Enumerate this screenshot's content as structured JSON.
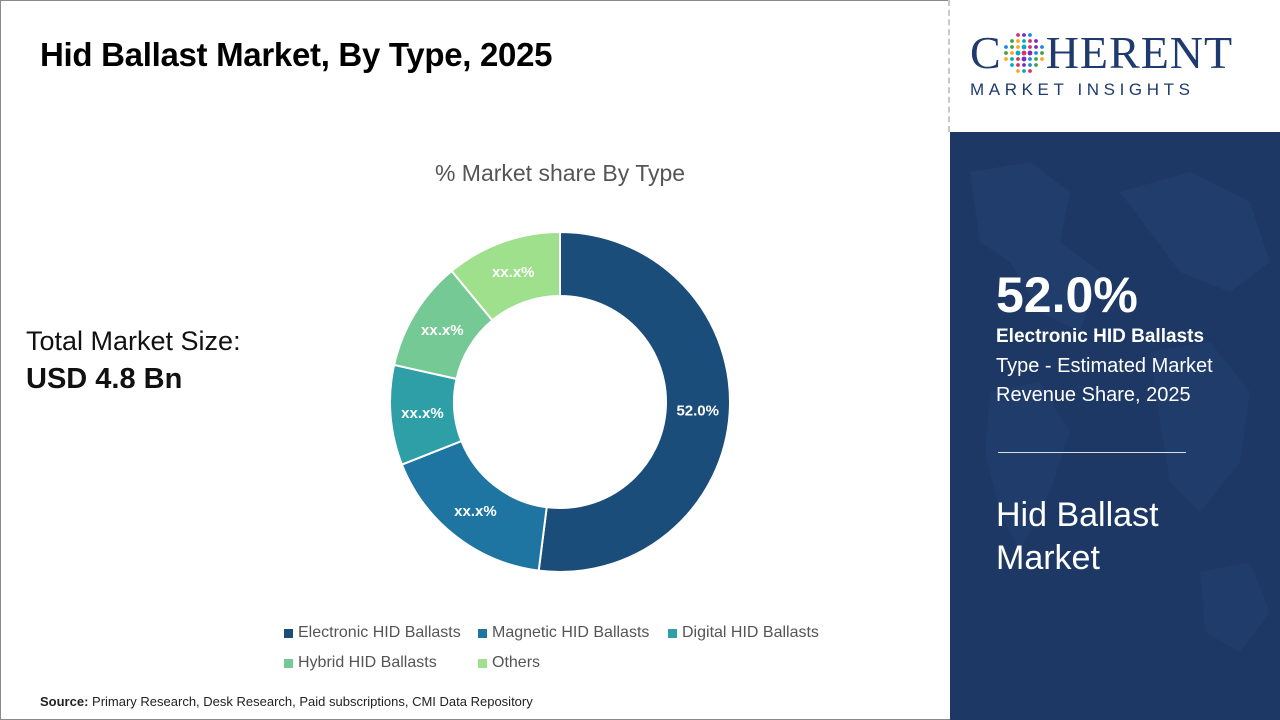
{
  "title": "Hid Ballast Market, By Type, 2025",
  "total_market": {
    "label": "Total Market Size:",
    "value": "USD 4.8 Bn"
  },
  "source": {
    "label": "Source:",
    "text": "Primary Research, Desk Research, Paid subscriptions, CMI Data Repository"
  },
  "logo": {
    "main_left": "C",
    "main_right": "HERENT",
    "sub": "MARKET INSIGHTS"
  },
  "highlight": {
    "value": "52.0%",
    "segment": "Electronic HID Ballasts",
    "description": "Type - Estimated Market Revenue Share, 2025",
    "market_line1": "Hid Ballast",
    "market_line2": "Market"
  },
  "colors": {
    "navy_panel": "#1d3864",
    "brand": "#1e3a6e"
  },
  "chart_data": {
    "type": "pie",
    "title": "% Market share By Type",
    "donut": true,
    "legend_position": "bottom",
    "categories": [
      "Electronic HID Ballasts",
      "Magnetic HID Ballasts",
      "Digital HID Ballasts",
      "Hybrid HID Ballasts",
      "Others"
    ],
    "values": [
      52.0,
      17.0,
      9.5,
      10.5,
      11.0
    ],
    "labels": [
      "52.0%",
      "xx.x%",
      "xx.x%",
      "xx.x%",
      "xx.x%"
    ],
    "colors": [
      "#1b4d7a",
      "#1f75a1",
      "#2e9fa7",
      "#74c994",
      "#9fe08c"
    ]
  }
}
